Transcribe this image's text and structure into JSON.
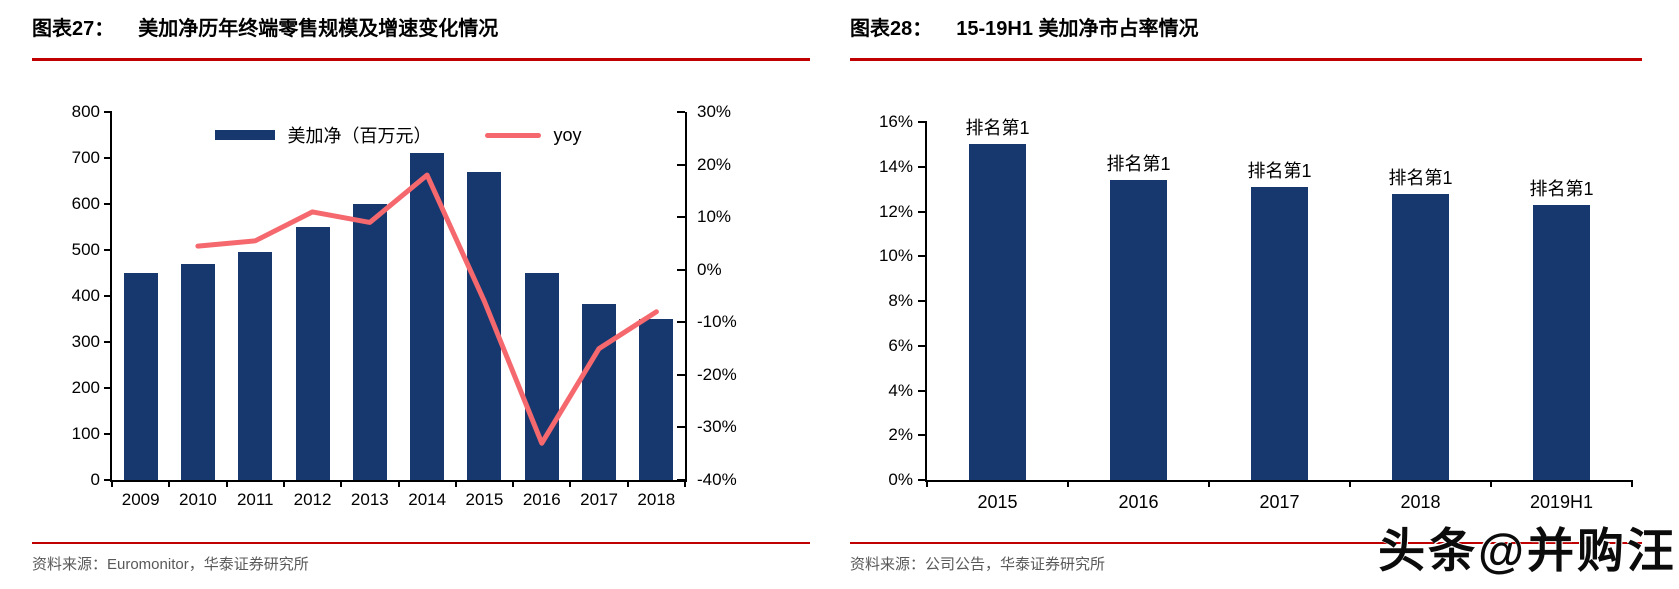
{
  "colors": {
    "bar_navy": "#17386e",
    "line_coral": "#f4686e",
    "rule_red": "#c00000",
    "source_gray": "#595959"
  },
  "left_figure": {
    "label": "图表27：",
    "title": "美加净历年终端零售规模及增速变化情况",
    "source": "资料来源：Euromonitor，华泰证券研究所"
  },
  "right_figure": {
    "label": "图表28：",
    "title": "15-19H1 美加净市占率情况",
    "source": "资料来源：公司公告，华泰证券研究所"
  },
  "watermark": "头条@并购汪",
  "chart_data": [
    {
      "type": "bar",
      "subtype": "combo-bar-line",
      "title": "美加净历年终端零售规模及增速变化情况",
      "categories": [
        "2009",
        "2010",
        "2011",
        "2012",
        "2013",
        "2014",
        "2015",
        "2016",
        "2017",
        "2018"
      ],
      "series": [
        {
          "name": "美加净（百万元）",
          "type": "bar",
          "axis": "left",
          "color": "#17386e",
          "values": [
            450,
            470,
            495,
            550,
            600,
            710,
            670,
            450,
            383,
            350
          ]
        },
        {
          "name": "yoy",
          "type": "line",
          "axis": "right",
          "color": "#f4686e",
          "values": [
            null,
            4.5,
            5.5,
            11,
            9,
            18,
            -6,
            -33,
            -15,
            -8
          ]
        }
      ],
      "left_axis": {
        "min": 0,
        "max": 800,
        "ticks": [
          "800",
          "700",
          "600",
          "500",
          "400",
          "300",
          "200",
          "100",
          "0"
        ]
      },
      "right_axis": {
        "min": -40,
        "max": 30,
        "ticks": [
          "30%",
          "20%",
          "10%",
          "0%",
          "-10%",
          "-20%",
          "-30%",
          "-40%"
        ]
      },
      "legend_position": "top-center",
      "grid": false
    },
    {
      "type": "bar",
      "title": "15-19H1 美加净市占率情况",
      "categories": [
        "2015",
        "2016",
        "2017",
        "2018",
        "2019H1"
      ],
      "values": [
        15.0,
        13.4,
        13.1,
        12.8,
        12.3
      ],
      "bar_labels": [
        "排名第1",
        "排名第1",
        "排名第1",
        "排名第1",
        "排名第1"
      ],
      "yaxis": {
        "min": 0,
        "max": 16,
        "ticks": [
          "16%",
          "14%",
          "12%",
          "10%",
          "8%",
          "6%",
          "4%",
          "2%",
          "0%"
        ]
      },
      "ylabel": "",
      "xlabel": "",
      "grid": false
    }
  ]
}
